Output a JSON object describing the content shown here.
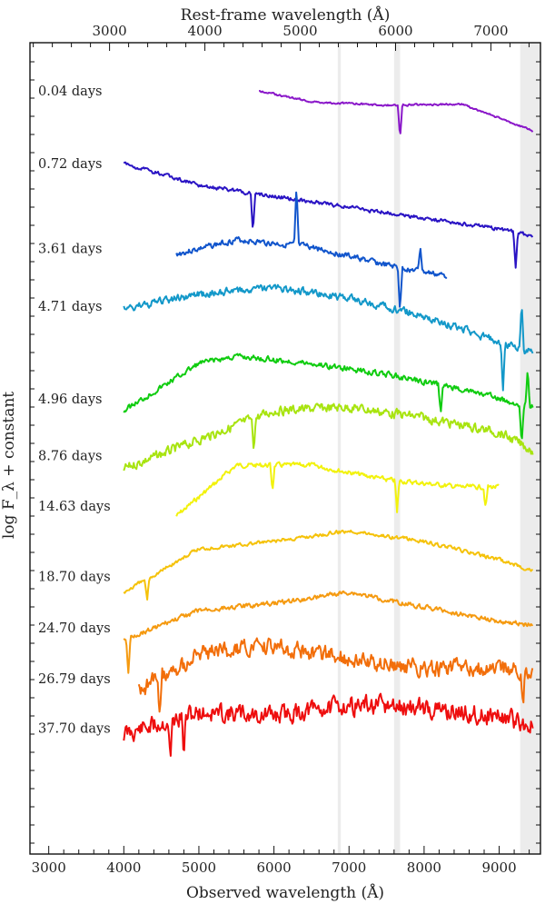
{
  "chart_data": {
    "type": "line",
    "x_label": "Observed wavelength (Å)",
    "top_x_label": "Rest-frame wavelength (Å)",
    "y_label": "log F_λ + constant",
    "x_range": [
      2750,
      9550
    ],
    "x_ticks": [
      3000,
      4000,
      5000,
      6000,
      7000,
      8000,
      9000
    ],
    "top_x_ticks": [
      3000,
      4000,
      5000,
      6000,
      7000
    ],
    "top_axis_scale": 1.27,
    "shaded_bands": [
      [
        6850,
        6890
      ],
      [
        7600,
        7680
      ],
      [
        9280,
        9550
      ]
    ],
    "grid": false,
    "series": [
      {
        "name": "0.04 days",
        "color": "#8a17c9",
        "x_start": 5800,
        "x_end": 9450,
        "offset": 0.5,
        "noise": 0.02,
        "seed": 1,
        "profile": [
          [
            5800,
            0.0
          ],
          [
            6500,
            0.15
          ],
          [
            7500,
            0.2
          ],
          [
            8500,
            0.18
          ],
          [
            9450,
            0.55
          ]
        ],
        "spikes": [
          [
            7680,
            0.45
          ]
        ]
      },
      {
        "name": "0.72 days",
        "color": "#2a14c4",
        "x_start": 4000,
        "x_end": 9450,
        "offset": 1.5,
        "noise": 0.04,
        "seed": 2,
        "profile": [
          [
            4000,
            0.0
          ],
          [
            5000,
            0.3
          ],
          [
            6000,
            0.45
          ],
          [
            7000,
            0.6
          ],
          [
            8000,
            0.75
          ],
          [
            9000,
            0.9
          ],
          [
            9450,
            1.0
          ]
        ],
        "spikes": [
          [
            5720,
            0.55
          ],
          [
            9220,
            0.5
          ]
        ]
      },
      {
        "name": "3.61 days",
        "color": "#1155cc",
        "x_start": 4700,
        "x_end": 8300,
        "offset": 2.55,
        "noise": 0.06,
        "seed": 3,
        "profile": [
          [
            4700,
            0.2
          ],
          [
            5500,
            0.0
          ],
          [
            6500,
            0.1
          ],
          [
            7500,
            0.35
          ],
          [
            8300,
            0.5
          ]
        ],
        "spikes": [
          [
            6300,
            -0.8
          ],
          [
            7680,
            0.6
          ],
          [
            7950,
            -0.35
          ]
        ]
      },
      {
        "name": "4.71 days",
        "color": "#1398c9",
        "x_start": 4000,
        "x_end": 9450,
        "offset": 3.4,
        "noise": 0.08,
        "seed": 4,
        "profile": [
          [
            4000,
            0.1
          ],
          [
            5000,
            -0.1
          ],
          [
            6000,
            -0.2
          ],
          [
            7000,
            -0.05
          ],
          [
            8000,
            0.2
          ],
          [
            9000,
            0.55
          ],
          [
            9450,
            0.7
          ]
        ],
        "spikes": [
          [
            9050,
            0.65
          ],
          [
            9300,
            -0.6
          ]
        ]
      },
      {
        "name": "4.96 days",
        "color": "#10cc10",
        "x_start": 4000,
        "x_end": 9450,
        "offset": 4.5,
        "noise": 0.06,
        "seed": 5,
        "profile": [
          [
            4000,
            0.4
          ],
          [
            5000,
            -0.25
          ],
          [
            5500,
            -0.35
          ],
          [
            6500,
            -0.25
          ],
          [
            7500,
            -0.1
          ],
          [
            8500,
            0.1
          ],
          [
            9400,
            0.35
          ]
        ],
        "spikes": [
          [
            8220,
            0.4
          ],
          [
            9300,
            0.55
          ],
          [
            9380,
            -0.5
          ]
        ]
      },
      {
        "name": "8.76 days",
        "color": "#a8e410",
        "x_start": 4000,
        "x_end": 9450,
        "offset": 5.25,
        "noise": 0.1,
        "seed": 6,
        "profile": [
          [
            4000,
            0.45
          ],
          [
            5000,
            0.05
          ],
          [
            6000,
            -0.35
          ],
          [
            7000,
            -0.4
          ],
          [
            8000,
            -0.25
          ],
          [
            9000,
            -0.05
          ],
          [
            9450,
            0.2
          ]
        ],
        "spikes": [
          [
            5730,
            0.4
          ]
        ]
      },
      {
        "name": "14.63 days",
        "color": "#f2f20c",
        "x_start": 4700,
        "x_end": 9000,
        "offset": 6.0,
        "noise": 0.05,
        "seed": 7,
        "profile": [
          [
            4700,
            0.35
          ],
          [
            5500,
            -0.35
          ],
          [
            6500,
            -0.35
          ],
          [
            7500,
            -0.15
          ],
          [
            8500,
            -0.05
          ],
          [
            9000,
            -0.05
          ]
        ],
        "spikes": [
          [
            5980,
            0.35
          ],
          [
            7640,
            0.45
          ],
          [
            8820,
            0.3
          ]
        ]
      },
      {
        "name": "18.70 days",
        "color": "#f5c20a",
        "x_start": 4000,
        "x_end": 9450,
        "offset": 6.85,
        "noise": 0.04,
        "seed": 8,
        "profile": [
          [
            4000,
            0.55
          ],
          [
            5000,
            -0.05
          ],
          [
            6000,
            -0.15
          ],
          [
            7000,
            -0.3
          ],
          [
            8000,
            -0.15
          ],
          [
            9000,
            0.1
          ],
          [
            9450,
            0.25
          ]
        ],
        "spikes": [
          [
            4310,
            0.3
          ]
        ]
      },
      {
        "name": "24.70 days",
        "color": "#f59a10",
        "x_start": 4000,
        "x_end": 9450,
        "offset": 7.65,
        "noise": 0.05,
        "seed": 9,
        "profile": [
          [
            4000,
            0.4
          ],
          [
            5000,
            0.0
          ],
          [
            6000,
            -0.1
          ],
          [
            7000,
            -0.25
          ],
          [
            8000,
            -0.05
          ],
          [
            9000,
            0.15
          ],
          [
            9450,
            0.2
          ]
        ],
        "spikes": [
          [
            4060,
            0.5
          ]
        ]
      },
      {
        "name": "26.79 days",
        "color": "#f26e0a",
        "x_start": 4200,
        "x_end": 9450,
        "offset": 8.35,
        "noise": 0.18,
        "seed": 10,
        "profile": [
          [
            4200,
            0.4
          ],
          [
            5000,
            -0.1
          ],
          [
            6000,
            -0.2
          ],
          [
            7000,
            -0.05
          ],
          [
            8000,
            0.1
          ],
          [
            9000,
            0.1
          ],
          [
            9450,
            0.1
          ]
        ],
        "spikes": [
          [
            4480,
            0.6
          ],
          [
            9320,
            0.5
          ]
        ]
      },
      {
        "name": "37.70 days",
        "color": "#ee0e0e",
        "x_start": 4000,
        "x_end": 9450,
        "offset": 9.15,
        "noise": 0.2,
        "seed": 11,
        "profile": [
          [
            4000,
            0.2
          ],
          [
            5000,
            -0.1
          ],
          [
            6000,
            -0.05
          ],
          [
            7000,
            -0.2
          ],
          [
            8000,
            -0.15
          ],
          [
            9000,
            -0.05
          ],
          [
            9450,
            0.1
          ]
        ],
        "spikes": [
          [
            4620,
            0.6
          ],
          [
            4800,
            0.55
          ]
        ]
      }
    ]
  }
}
